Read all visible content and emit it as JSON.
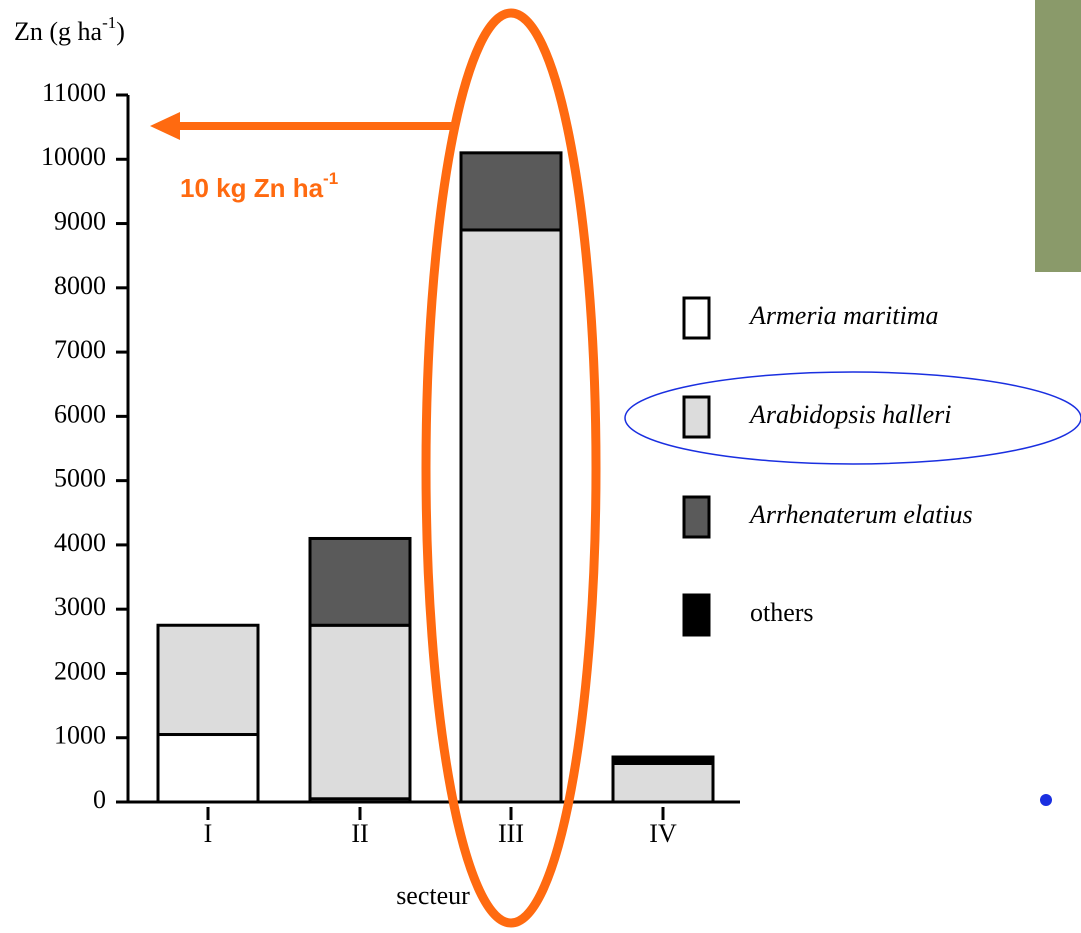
{
  "chart_data": {
    "type": "stacked_bar",
    "y_label": [
      "Zn  (g ha",
      "-1",
      ")"
    ],
    "x_label": "secteur",
    "annotation": [
      "10 kg Zn ha",
      "-1"
    ],
    "categories": [
      "I",
      "II",
      "III",
      "IV"
    ],
    "series": [
      {
        "name": "Armeria maritima",
        "color": "#ffffff",
        "italic": true,
        "values": [
          1050,
          50,
          0,
          0
        ]
      },
      {
        "name": "Arabidopsis halleri",
        "color": "#dcdcdc",
        "italic": true,
        "values": [
          1700,
          2700,
          8900,
          600
        ]
      },
      {
        "name": "Arrhenaterum elatius",
        "color": "#5a5a5a",
        "italic": true,
        "values": [
          0,
          1350,
          1200,
          0
        ]
      },
      {
        "name": "others",
        "color": "#000000",
        "italic": false,
        "values": [
          0,
          0,
          0,
          100
        ]
      }
    ],
    "ylim": [
      0,
      11000
    ],
    "yticks": [
      0,
      1000,
      2000,
      3000,
      4000,
      5000,
      6000,
      7000,
      8000,
      9000,
      10000,
      11000
    ]
  }
}
